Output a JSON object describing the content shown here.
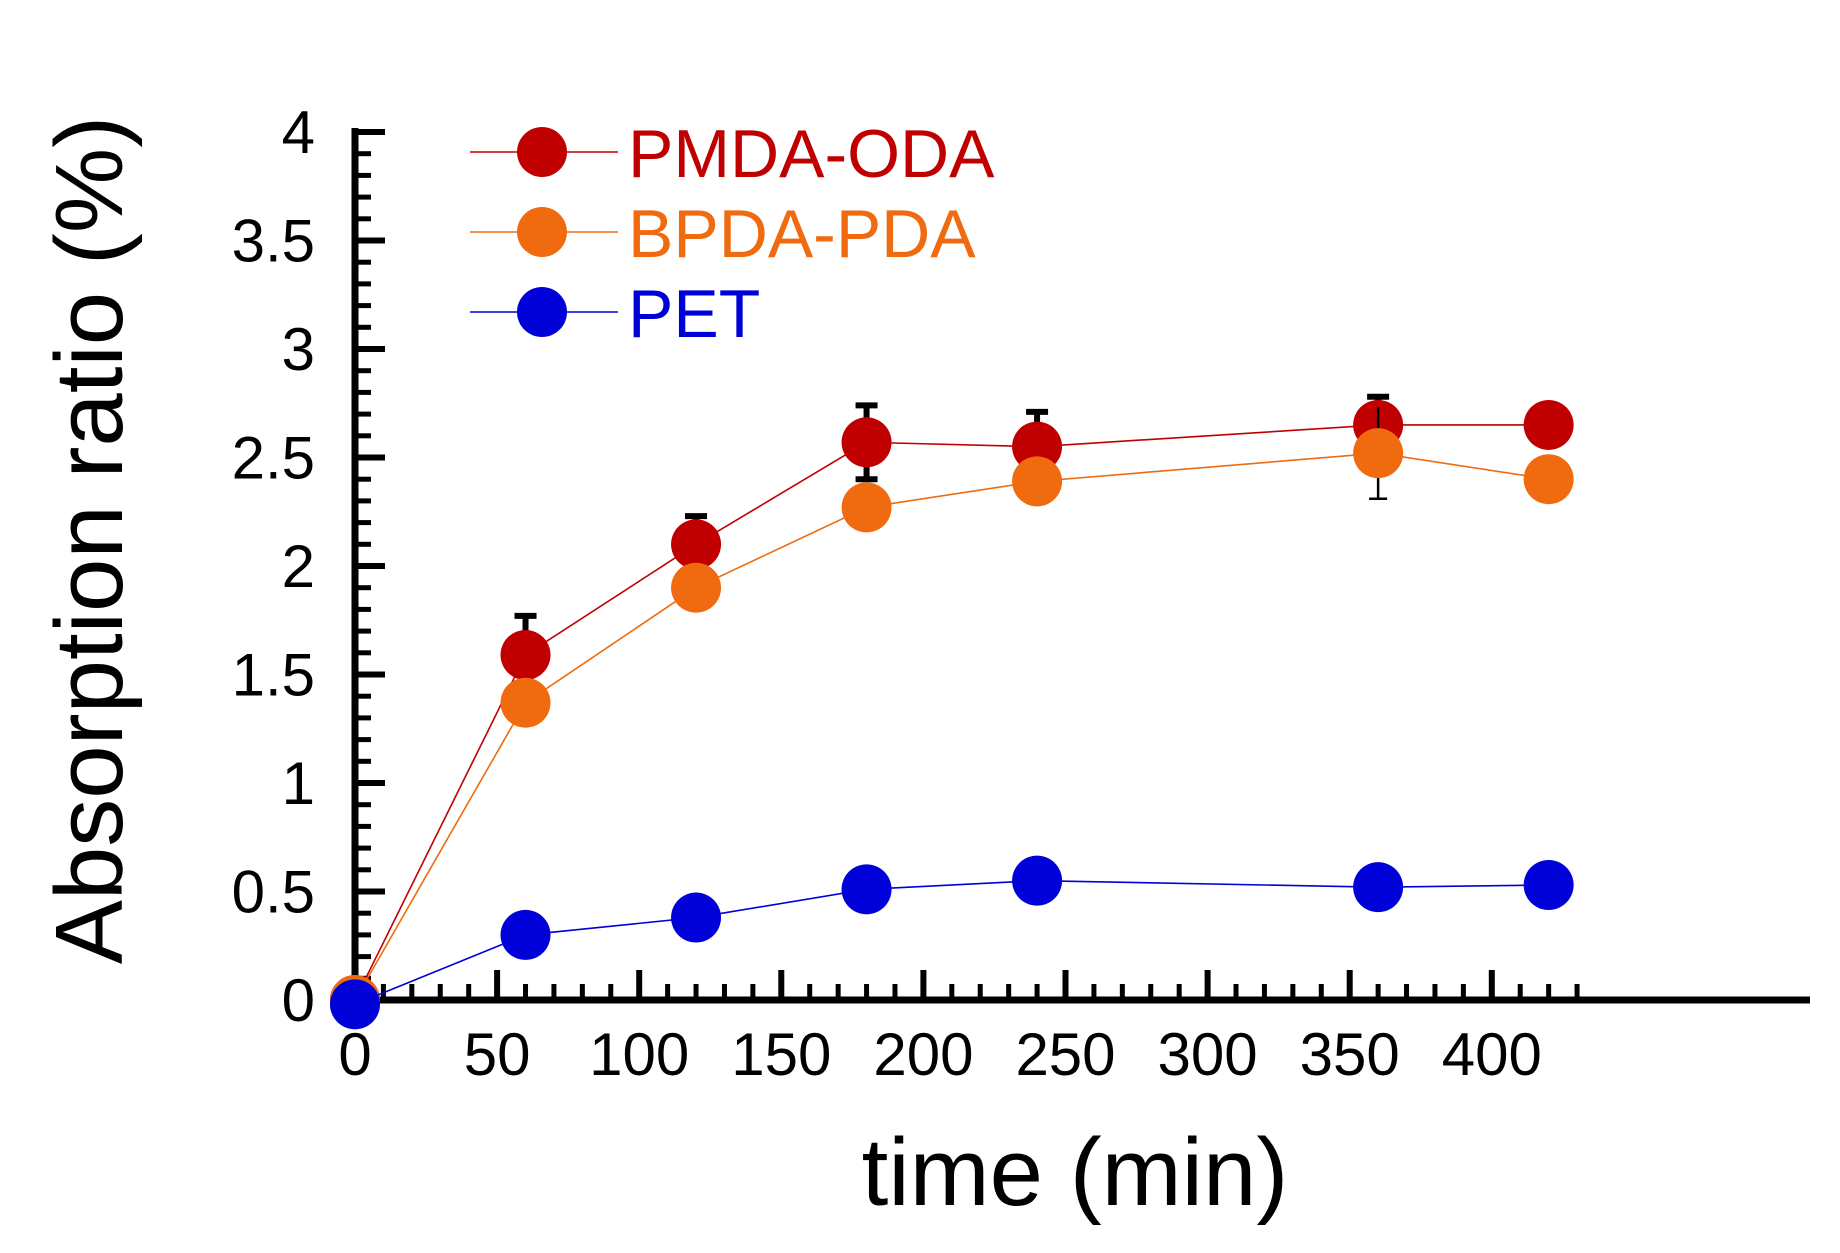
{
  "chart_data": {
    "type": "line",
    "xlabel": "time (min)",
    "ylabel": "Absorption ratio (%)",
    "xlim": [
      0,
      435
    ],
    "ylim": [
      0,
      4
    ],
    "x_ticks": [
      0,
      50,
      100,
      150,
      200,
      250,
      300,
      350,
      400
    ],
    "y_ticks": [
      0,
      0.5,
      1,
      1.5,
      2,
      2.5,
      3,
      3.5,
      4
    ],
    "grid": false,
    "legend_position": "top-left",
    "series": [
      {
        "name": "PMDA-ODA",
        "color": "#c00000",
        "x": [
          0,
          60,
          120,
          180,
          240,
          360,
          420
        ],
        "y": [
          0,
          1.59,
          2.1,
          2.57,
          2.55,
          2.65,
          2.65
        ],
        "yerr": [
          0,
          0.18,
          0.13,
          0.17,
          0.16,
          0.13,
          0
        ]
      },
      {
        "name": "BPDA-PDA",
        "color": "#f06a10",
        "x": [
          0,
          60,
          120,
          180,
          240,
          360,
          420
        ],
        "y": [
          0,
          1.37,
          1.9,
          2.27,
          2.39,
          2.52,
          2.4
        ],
        "yerr": [
          0,
          0,
          0,
          0,
          0,
          0.21,
          0
        ]
      },
      {
        "name": "PET",
        "color": "#0000d8",
        "x": [
          0,
          60,
          120,
          180,
          240,
          360,
          420
        ],
        "y": [
          -0.02,
          0.3,
          0.38,
          0.51,
          0.55,
          0.52,
          0.53
        ],
        "yerr": [
          0,
          0,
          0,
          0,
          0,
          0,
          0
        ]
      }
    ]
  }
}
